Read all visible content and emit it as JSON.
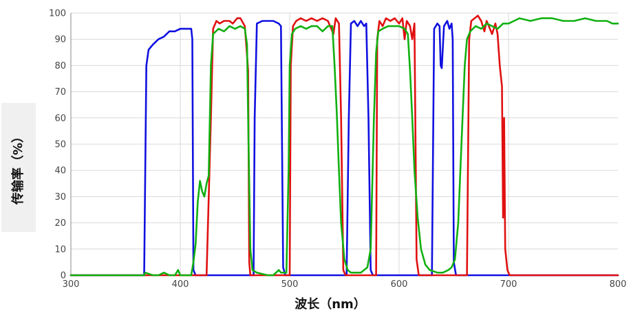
{
  "chart_data": {
    "type": "line",
    "xlabel": "波长（nm）",
    "ylabel": "传输率（%）",
    "xlim": [
      300,
      800
    ],
    "ylim": [
      0,
      100
    ],
    "x_ticks": [
      "300",
      "400",
      "500",
      "600",
      "700",
      "800"
    ],
    "y_ticks": [
      "0",
      "10",
      "20",
      "30",
      "40",
      "50",
      "60",
      "70",
      "80",
      "90",
      "100"
    ],
    "grid": true,
    "legend": "none",
    "series": [
      {
        "color": "#1010e0",
        "points": [
          [
            300,
            0
          ],
          [
            365,
            0
          ],
          [
            367,
            0
          ],
          [
            369,
            80
          ],
          [
            371,
            86
          ],
          [
            375,
            88
          ],
          [
            380,
            90
          ],
          [
            385,
            91
          ],
          [
            390,
            93
          ],
          [
            395,
            93
          ],
          [
            400,
            94
          ],
          [
            405,
            94
          ],
          [
            410,
            94
          ],
          [
            411,
            90
          ],
          [
            412,
            2
          ],
          [
            414,
            0
          ],
          [
            465,
            0
          ],
          [
            467,
            0
          ],
          [
            468,
            60
          ],
          [
            470,
            96
          ],
          [
            475,
            97
          ],
          [
            480,
            97
          ],
          [
            485,
            97
          ],
          [
            490,
            96
          ],
          [
            492,
            95
          ],
          [
            494,
            3
          ],
          [
            496,
            0
          ],
          [
            550,
            0
          ],
          [
            552,
            0
          ],
          [
            554,
            60
          ],
          [
            556,
            96
          ],
          [
            559,
            97
          ],
          [
            562,
            95
          ],
          [
            565,
            97
          ],
          [
            568,
            95
          ],
          [
            570,
            96
          ],
          [
            572,
            60
          ],
          [
            574,
            2
          ],
          [
            576,
            0
          ],
          [
            628,
            0
          ],
          [
            630,
            0
          ],
          [
            632,
            94
          ],
          [
            635,
            96
          ],
          [
            637,
            95
          ],
          [
            638,
            80
          ],
          [
            639,
            79
          ],
          [
            641,
            95
          ],
          [
            644,
            97
          ],
          [
            646,
            94
          ],
          [
            648,
            96
          ],
          [
            649,
            90
          ],
          [
            650,
            5
          ],
          [
            652,
            0
          ],
          [
            800,
            0
          ]
        ]
      },
      {
        "color": "#e01010",
        "points": [
          [
            300,
            0
          ],
          [
            410,
            0
          ],
          [
            418,
            0
          ],
          [
            422,
            0
          ],
          [
            424,
            0
          ],
          [
            428,
            60
          ],
          [
            430,
            94
          ],
          [
            433,
            97
          ],
          [
            436,
            96
          ],
          [
            440,
            97
          ],
          [
            445,
            97
          ],
          [
            448,
            96
          ],
          [
            452,
            98
          ],
          [
            455,
            98
          ],
          [
            459,
            95
          ],
          [
            461,
            84
          ],
          [
            462,
            78
          ],
          [
            463,
            5
          ],
          [
            464,
            0
          ],
          [
            499,
            0
          ],
          [
            500,
            0
          ],
          [
            501,
            80
          ],
          [
            503,
            95
          ],
          [
            506,
            97
          ],
          [
            510,
            98
          ],
          [
            515,
            97
          ],
          [
            520,
            98
          ],
          [
            525,
            97
          ],
          [
            530,
            98
          ],
          [
            535,
            97
          ],
          [
            540,
            92
          ],
          [
            542,
            98
          ],
          [
            545,
            96
          ],
          [
            547,
            60
          ],
          [
            549,
            2
          ],
          [
            551,
            0
          ],
          [
            578,
            0
          ],
          [
            579,
            0
          ],
          [
            580,
            90
          ],
          [
            582,
            97
          ],
          [
            585,
            95
          ],
          [
            588,
            98
          ],
          [
            592,
            97
          ],
          [
            596,
            98
          ],
          [
            600,
            96
          ],
          [
            603,
            98
          ],
          [
            605,
            90
          ],
          [
            607,
            97
          ],
          [
            610,
            95
          ],
          [
            612,
            90
          ],
          [
            614,
            96
          ],
          [
            616,
            6
          ],
          [
            618,
            0
          ],
          [
            660,
            0
          ],
          [
            662,
            0
          ],
          [
            664,
            90
          ],
          [
            666,
            97
          ],
          [
            669,
            98
          ],
          [
            672,
            99
          ],
          [
            675,
            97
          ],
          [
            678,
            93
          ],
          [
            680,
            97
          ],
          [
            682,
            95
          ],
          [
            685,
            92
          ],
          [
            688,
            96
          ],
          [
            690,
            92
          ],
          [
            692,
            80
          ],
          [
            694,
            72
          ],
          [
            695,
            22
          ],
          [
            696,
            60
          ],
          [
            697,
            10
          ],
          [
            699,
            2
          ],
          [
            701,
            0
          ],
          [
            800,
            0
          ]
        ]
      },
      {
        "color": "#10b010",
        "points": [
          [
            300,
            0
          ],
          [
            367,
            0
          ],
          [
            368,
            1
          ],
          [
            375,
            0
          ],
          [
            380,
            0
          ],
          [
            385,
            1
          ],
          [
            390,
            0
          ],
          [
            395,
            0
          ],
          [
            398,
            2
          ],
          [
            400,
            0
          ],
          [
            410,
            0
          ],
          [
            412,
            5
          ],
          [
            414,
            12
          ],
          [
            416,
            28
          ],
          [
            418,
            36
          ],
          [
            420,
            32
          ],
          [
            422,
            30
          ],
          [
            424,
            35
          ],
          [
            426,
            38
          ],
          [
            428,
            80
          ],
          [
            430,
            92
          ],
          [
            435,
            94
          ],
          [
            440,
            93
          ],
          [
            445,
            95
          ],
          [
            450,
            94
          ],
          [
            455,
            95
          ],
          [
            459,
            94
          ],
          [
            461,
            88
          ],
          [
            462,
            60
          ],
          [
            464,
            10
          ],
          [
            466,
            2
          ],
          [
            470,
            1
          ],
          [
            480,
            0
          ],
          [
            485,
            0
          ],
          [
            490,
            2
          ],
          [
            492,
            1
          ],
          [
            495,
            1
          ],
          [
            497,
            1
          ],
          [
            499,
            40
          ],
          [
            500,
            80
          ],
          [
            502,
            92
          ],
          [
            505,
            94
          ],
          [
            510,
            95
          ],
          [
            515,
            94
          ],
          [
            520,
            95
          ],
          [
            525,
            95
          ],
          [
            530,
            93
          ],
          [
            535,
            95
          ],
          [
            539,
            95
          ],
          [
            541,
            80
          ],
          [
            543,
            62
          ],
          [
            545,
            40
          ],
          [
            547,
            20
          ],
          [
            550,
            6
          ],
          [
            553,
            2
          ],
          [
            556,
            1
          ],
          [
            560,
            1
          ],
          [
            565,
            1
          ],
          [
            568,
            2
          ],
          [
            571,
            3
          ],
          [
            574,
            10
          ],
          [
            577,
            60
          ],
          [
            579,
            85
          ],
          [
            581,
            93
          ],
          [
            585,
            94
          ],
          [
            590,
            95
          ],
          [
            595,
            95
          ],
          [
            600,
            95
          ],
          [
            605,
            94
          ],
          [
            608,
            92
          ],
          [
            610,
            78
          ],
          [
            612,
            60
          ],
          [
            614,
            40
          ],
          [
            617,
            22
          ],
          [
            620,
            10
          ],
          [
            624,
            4
          ],
          [
            628,
            2
          ],
          [
            635,
            1
          ],
          [
            640,
            1
          ],
          [
            645,
            2
          ],
          [
            648,
            3
          ],
          [
            651,
            6
          ],
          [
            654,
            20
          ],
          [
            657,
            50
          ],
          [
            660,
            80
          ],
          [
            662,
            90
          ],
          [
            665,
            93
          ],
          [
            670,
            95
          ],
          [
            675,
            94
          ],
          [
            680,
            96
          ],
          [
            685,
            95
          ],
          [
            690,
            94
          ],
          [
            695,
            96
          ],
          [
            700,
            96
          ],
          [
            705,
            97
          ],
          [
            710,
            98
          ],
          [
            720,
            97
          ],
          [
            730,
            98
          ],
          [
            740,
            98
          ],
          [
            750,
            97
          ],
          [
            760,
            97
          ],
          [
            770,
            98
          ],
          [
            780,
            97
          ],
          [
            790,
            97
          ],
          [
            795,
            96
          ],
          [
            800,
            96
          ]
        ]
      }
    ]
  }
}
